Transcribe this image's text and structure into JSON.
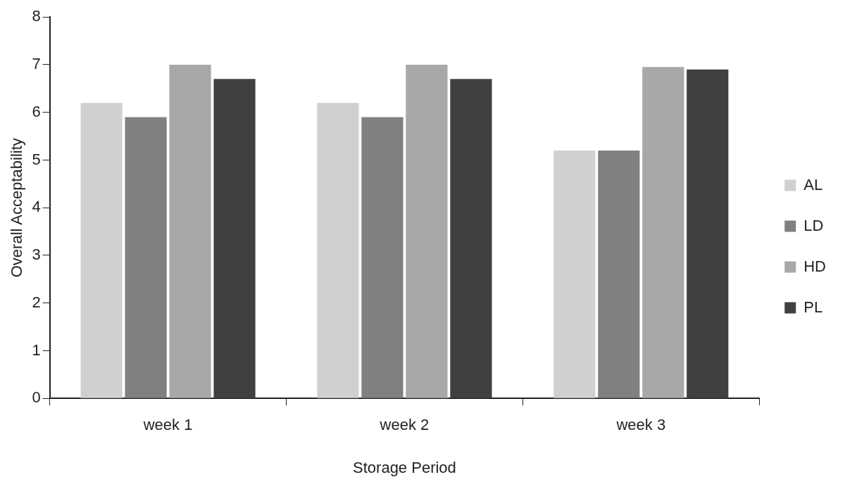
{
  "chart_data": {
    "type": "bar",
    "xlabel": "Storage Period",
    "ylabel": "Overall Acceptability",
    "categories": [
      "week 1",
      "week 2",
      "week 3"
    ],
    "series": [
      {
        "name": "AL",
        "color": "#d0d0d0",
        "values": [
          6.2,
          6.2,
          5.2
        ]
      },
      {
        "name": "LD",
        "color": "#808080",
        "values": [
          5.9,
          5.9,
          5.2
        ]
      },
      {
        "name": "HD",
        "color": "#a8a8a8",
        "values": [
          7.0,
          7.0,
          6.95
        ]
      },
      {
        "name": "PL",
        "color": "#404040",
        "values": [
          6.7,
          6.7,
          6.9
        ]
      }
    ],
    "ylim": [
      0,
      8
    ],
    "yticks": [
      0,
      1,
      2,
      3,
      4,
      5,
      6,
      7,
      8
    ],
    "grid": false,
    "legend": "right"
  }
}
